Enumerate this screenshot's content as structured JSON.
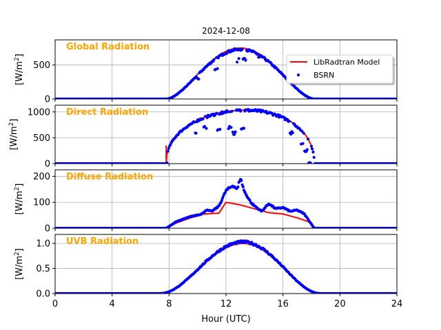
{
  "figure": {
    "title": "2024-12-08",
    "xlabel": "Hour (UTC)",
    "ylabel_prefix": "[W/m",
    "ylabel_exp": "2",
    "ylabel_suffix": "]",
    "xticks": [
      0,
      4,
      8,
      12,
      16,
      20,
      24
    ],
    "xticklabels": [
      "0",
      "4",
      "8",
      "12",
      "16",
      "20",
      "24"
    ],
    "label_color": "#FFA500",
    "model_color": "#FF0000",
    "obs_color": "#0000FF",
    "legend": {
      "placement": "right",
      "entries": [
        "LibRadtran Model",
        "BSRN"
      ]
    }
  },
  "chart_data": [
    {
      "type": "line",
      "label": "Global Radiation",
      "xlim": [
        0,
        24
      ],
      "ylim": [
        0,
        870
      ],
      "yticks": [
        0,
        500
      ],
      "yticklabels": [
        "0",
        "500"
      ],
      "grid": true,
      "daylight": [
        7.8,
        18.2
      ],
      "peak_hour": 13.0,
      "model": {
        "name": "LibRadtran Model",
        "peak": 750,
        "exponent": 1.8
      },
      "obs": {
        "name": "BSRN",
        "peak": 730,
        "exponent": 1.8,
        "dips": [
          {
            "hour": 10.0,
            "value": 290
          },
          {
            "hour": 11.3,
            "value": 420
          },
          {
            "hour": 12.8,
            "value": 570
          },
          {
            "hour": 13.3,
            "value": 600
          },
          {
            "hour": 14.4,
            "value": 610
          },
          {
            "hour": 16.5,
            "value": 300
          }
        ]
      }
    },
    {
      "type": "line",
      "label": "Direct Radiation",
      "xlim": [
        0,
        24
      ],
      "ylim": [
        0,
        1130
      ],
      "yticks": [
        0,
        500,
        1000
      ],
      "yticklabels": [
        "0",
        "500",
        "1000"
      ],
      "grid": true,
      "daylight": [
        7.8,
        18.2
      ],
      "peak_hour": 13.5,
      "model": {
        "name": "LibRadtran Model",
        "peak": 1040,
        "exponent": 0.45,
        "end": 18.0,
        "end_value": 270
      },
      "obs": {
        "name": "BSRN",
        "peak": 1030,
        "exponent": 0.45,
        "dips": [
          {
            "hour": 7.8,
            "value": 20
          },
          {
            "hour": 9.8,
            "value": 600
          },
          {
            "hour": 10.5,
            "value": 700
          },
          {
            "hour": 11.5,
            "value": 650
          },
          {
            "hour": 12.3,
            "value": 700
          },
          {
            "hour": 12.6,
            "value": 590
          },
          {
            "hour": 13.2,
            "value": 700
          },
          {
            "hour": 16.6,
            "value": 600
          },
          {
            "hour": 17.3,
            "value": 400
          },
          {
            "hour": 17.6,
            "value": 260
          },
          {
            "hour": 17.9,
            "value": 30
          }
        ]
      }
    },
    {
      "type": "line",
      "label": "Diffuse Radiation",
      "xlim": [
        0,
        24
      ],
      "ylim": [
        0,
        225
      ],
      "yticks": [
        0,
        100,
        200
      ],
      "yticklabels": [
        "0",
        "100",
        "200"
      ],
      "grid": true,
      "daylight": [
        7.8,
        18.2
      ],
      "model_points": [
        [
          7.8,
          0
        ],
        [
          8.5,
          20
        ],
        [
          9.5,
          40
        ],
        [
          10.5,
          55
        ],
        [
          11.5,
          58
        ],
        [
          12.0,
          100
        ],
        [
          13.0,
          90
        ],
        [
          14.0,
          75
        ],
        [
          15.0,
          60
        ],
        [
          16.0,
          55
        ],
        [
          17.0,
          40
        ],
        [
          17.8,
          25
        ],
        [
          18.2,
          0
        ]
      ],
      "obs_points": [
        [
          7.8,
          0
        ],
        [
          8.5,
          25
        ],
        [
          9.5,
          45
        ],
        [
          10.3,
          55
        ],
        [
          10.6,
          70
        ],
        [
          11.0,
          65
        ],
        [
          11.5,
          85
        ],
        [
          12.0,
          145
        ],
        [
          12.5,
          165
        ],
        [
          12.8,
          150
        ],
        [
          13.0,
          195
        ],
        [
          13.3,
          140
        ],
        [
          13.8,
          95
        ],
        [
          14.5,
          65
        ],
        [
          15.0,
          95
        ],
        [
          15.5,
          75
        ],
        [
          16.0,
          80
        ],
        [
          16.5,
          65
        ],
        [
          17.0,
          70
        ],
        [
          17.5,
          55
        ],
        [
          18.2,
          0
        ]
      ],
      "model": {
        "name": "LibRadtran Model"
      },
      "obs": {
        "name": "BSRN"
      }
    },
    {
      "type": "line",
      "label": "UVB Radiation",
      "xlim": [
        0,
        24
      ],
      "ylim": [
        0,
        1.18
      ],
      "yticks": [
        0.0,
        0.5,
        1.0
      ],
      "yticklabels": [
        "0.0",
        "0.5",
        "1.0"
      ],
      "grid": true,
      "daylight": [
        7.3,
        18.7
      ],
      "peak_hour": 13.2,
      "model": {
        "name": "LibRadtran Model",
        "peak": 1.0,
        "exponent": 2.2
      },
      "obs": {
        "name": "BSRN",
        "peak": 1.03,
        "exponent": 2.2,
        "dips": []
      }
    }
  ]
}
